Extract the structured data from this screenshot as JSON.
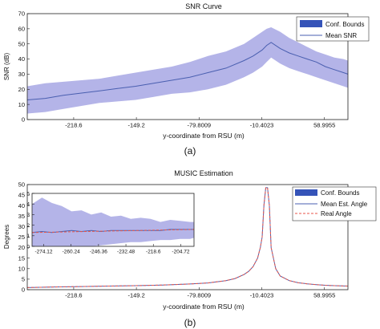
{
  "chart_data": [
    {
      "type": "line",
      "title": "SNR Curve",
      "caption": "(a)",
      "xlabel": "y-coordinate from RSU (m)",
      "ylabel": "SNR (dB)",
      "xlim": [
        -270,
        85
      ],
      "ylim": [
        0,
        70
      ],
      "xticks": [
        -218.6,
        -149.2,
        -79.8009,
        -10.4023,
        58.9955
      ],
      "xtick_labels": [
        "-218.6",
        "-149.2",
        "-79.8009",
        "-10.4023",
        "58.9955"
      ],
      "yticks": [
        0,
        10,
        20,
        30,
        40,
        50,
        60,
        70
      ],
      "ytick_labels": [
        "0",
        "10",
        "20",
        "30",
        "40",
        "50",
        "60",
        "70"
      ],
      "grid": false,
      "legend_position": "top-right",
      "legend": [
        "Conf. Bounds",
        "Mean SNR"
      ],
      "series": [
        {
          "name": "Mean SNR",
          "color": "#4a5fb0",
          "x": [
            -270,
            -250,
            -230,
            -210,
            -190,
            -170,
            -150,
            -130,
            -110,
            -90,
            -70,
            -50,
            -30,
            -20,
            -10,
            -5,
            0,
            10,
            20,
            30,
            40,
            50,
            60,
            70,
            80,
            85
          ],
          "y": [
            13,
            14,
            16,
            17.5,
            19,
            20.5,
            22,
            24,
            26,
            28,
            31,
            34,
            39,
            42,
            46,
            49,
            51,
            47,
            44,
            42,
            40,
            38,
            35,
            33,
            31,
            30
          ]
        },
        {
          "name": "Conf. Bounds",
          "color": "#9b9be0",
          "x": [
            -270,
            -250,
            -230,
            -210,
            -190,
            -170,
            -150,
            -130,
            -110,
            -90,
            -70,
            -50,
            -30,
            -20,
            -10,
            -5,
            0,
            10,
            20,
            30,
            40,
            50,
            60,
            70,
            80,
            85
          ],
          "upper": [
            22,
            24,
            25,
            26,
            27,
            29,
            31,
            33,
            35,
            38,
            42,
            45,
            50,
            54,
            58,
            60,
            61,
            58,
            54,
            51,
            48,
            45,
            43,
            41,
            40,
            39
          ],
          "lower": [
            4,
            5,
            7,
            9,
            11,
            12,
            13,
            15,
            17,
            18,
            20,
            23,
            28,
            31,
            35,
            38,
            41,
            37,
            34,
            32,
            30,
            28,
            26,
            24,
            22,
            21
          ]
        }
      ]
    },
    {
      "type": "line",
      "title": "MUSIC Estimation",
      "caption": "(b)",
      "xlabel": "y-coordinate from RSU (m)",
      "ylabel": "Degrees",
      "xlim": [
        -270,
        85
      ],
      "ylim": [
        0,
        50
      ],
      "xticks": [
        -218.6,
        -149.2,
        -79.8009,
        -10.4023,
        58.9955
      ],
      "xtick_labels": [
        "-218.6",
        "-149.2",
        "-79.8009",
        "-10.4023",
        "58.9955"
      ],
      "yticks": [
        0,
        5,
        10,
        15,
        20,
        25,
        30,
        35,
        40,
        45,
        50
      ],
      "ytick_labels": [
        "0",
        "5",
        "10",
        "15",
        "20",
        "25",
        "30",
        "35",
        "40",
        "45",
        "50"
      ],
      "grid": false,
      "legend_position": "top-right",
      "legend": [
        "Conf. Bounds",
        "Mean Est. Angle",
        "Real Angle"
      ],
      "series": [
        {
          "name": "Mean Est. Angle",
          "color": "#4a5fb0",
          "x": [
            -270,
            -240,
            -210,
            -180,
            -150,
            -120,
            -90,
            -70,
            -50,
            -40,
            -30,
            -25,
            -20,
            -15,
            -12,
            -10,
            -8,
            -6,
            -4,
            -2,
            0,
            5,
            10,
            20,
            30,
            40,
            50,
            60,
            70,
            85
          ],
          "y": [
            1,
            1.3,
            1.5,
            1.7,
            1.9,
            2.2,
            2.7,
            3.2,
            4.3,
            5.3,
            7.2,
            8.7,
            11,
            15,
            20,
            25,
            40,
            48.5,
            48.5,
            40,
            20,
            10,
            6.5,
            4.3,
            3.3,
            2.8,
            2.4,
            2.1,
            1.9,
            1.7
          ]
        },
        {
          "name": "Real Angle",
          "color": "#e8564a",
          "x": [
            -270,
            -240,
            -210,
            -180,
            -150,
            -120,
            -90,
            -70,
            -50,
            -40,
            -30,
            -25,
            -20,
            -15,
            -12,
            -10,
            -8,
            -6,
            -4,
            -2,
            0,
            5,
            10,
            20,
            30,
            40,
            50,
            60,
            70,
            85
          ],
          "y": [
            1,
            1.3,
            1.5,
            1.7,
            1.9,
            2.2,
            2.7,
            3.2,
            4.3,
            5.3,
            7.2,
            8.7,
            11,
            15,
            20,
            25,
            40,
            48.5,
            48.5,
            40,
            20,
            10,
            6.5,
            4.3,
            3.3,
            2.8,
            2.4,
            2.1,
            1.9,
            1.7
          ]
        }
      ],
      "inset": {
        "xlim": [
          -280,
          -198
        ],
        "ylim": [
          0,
          5
        ],
        "xticks": [
          -274.12,
          -260.24,
          -246.36,
          -232.48,
          -218.6,
          -204.72
        ],
        "xtick_labels": [
          "-274.12",
          "-260.24",
          "-246.36",
          "-232.48",
          "-218.6",
          "-204.72"
        ],
        "yticks": [
          0,
          1,
          2,
          3,
          4,
          5
        ],
        "ytick_labels": [
          "0",
          "1",
          "2",
          "3",
          "4",
          "5"
        ],
        "series": [
          {
            "name": "Conf. Bounds",
            "color": "#9b9be0",
            "x": [
              -280,
              -275,
              -270,
              -265,
              -260,
              -255,
              -250,
              -245,
              -240,
              -235,
              -230,
              -225,
              -220,
              -215,
              -210,
              -205,
              -200,
              -198
            ],
            "upper": [
              4.0,
              4.6,
              4.1,
              3.8,
              3.3,
              3.4,
              3.0,
              3.2,
              2.8,
              2.9,
              2.6,
              2.7,
              2.6,
              2.3,
              2.5,
              2.4,
              2.3,
              2.3
            ],
            "lower": [
              0,
              0,
              0,
              0,
              0,
              0,
              0,
              0.1,
              0.2,
              0.3,
              0.4,
              0.4,
              0.5,
              0.6,
              0.6,
              0.7,
              0.7,
              0.8
            ]
          },
          {
            "name": "Mean Est. Angle",
            "color": "#4a5fb0",
            "x": [
              -280,
              -275,
              -270,
              -265,
              -260,
              -255,
              -250,
              -245,
              -240,
              -235,
              -230,
              -225,
              -220,
              -215,
              -210,
              -205,
              -200,
              -198
            ],
            "y": [
              1.3,
              1.4,
              1.3,
              1.4,
              1.5,
              1.4,
              1.5,
              1.4,
              1.5,
              1.5,
              1.5,
              1.5,
              1.5,
              1.5,
              1.6,
              1.6,
              1.6,
              1.6
            ]
          },
          {
            "name": "Real Angle",
            "color": "#e8564a",
            "x": [
              -280,
              -198
            ],
            "y": [
              1.3,
              1.6
            ]
          }
        ]
      }
    }
  ]
}
